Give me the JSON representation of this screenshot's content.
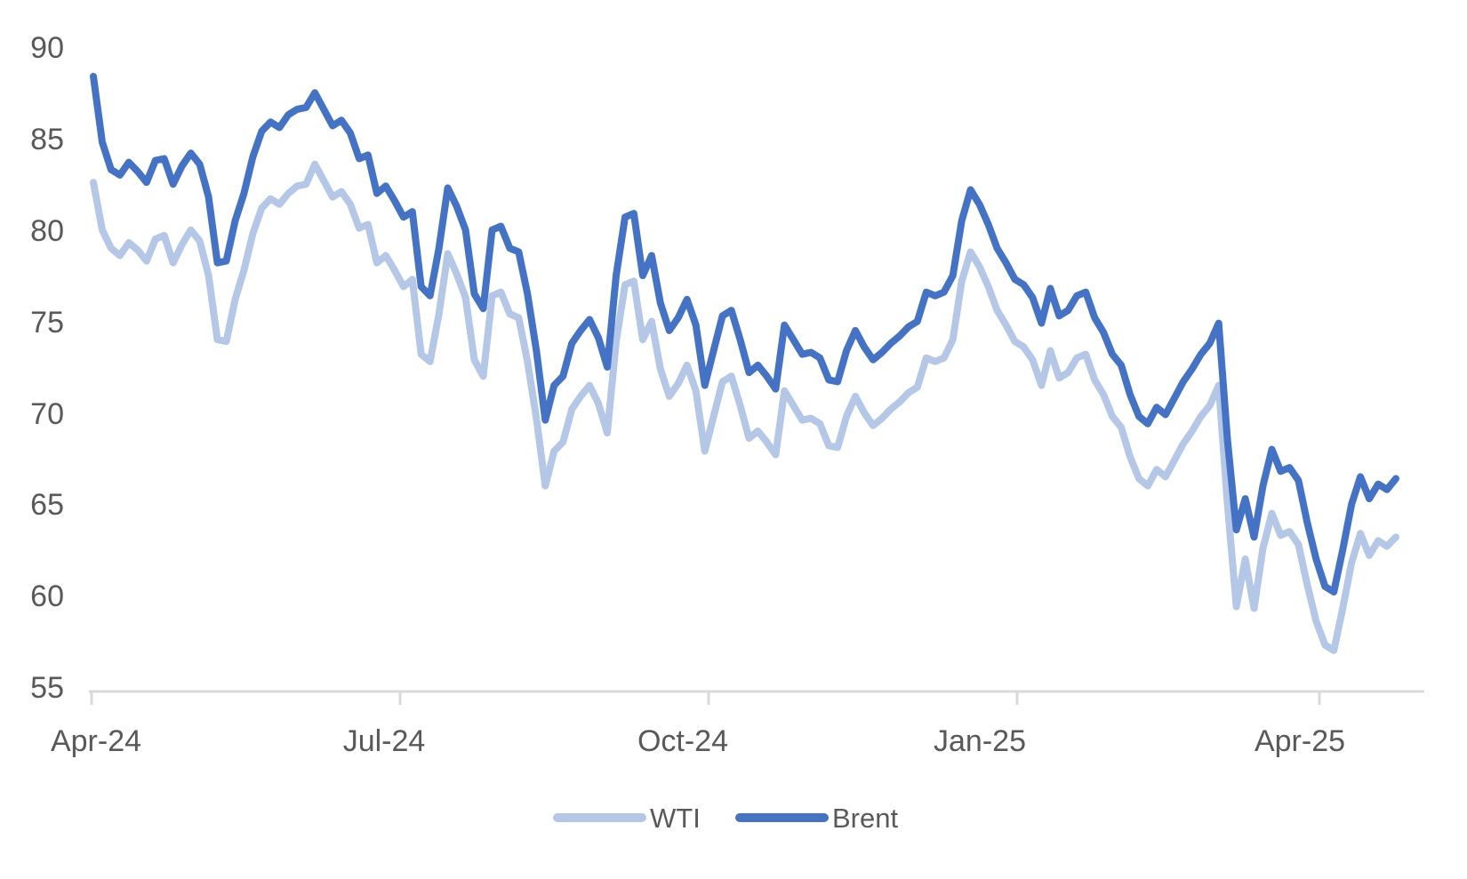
{
  "chart_data": {
    "type": "line",
    "title": "",
    "xlabel": "",
    "ylabel": "",
    "x_unit": "daily prices, Apr-2024 through Apr-2025",
    "ylim": [
      55,
      90
    ],
    "grid": false,
    "legend_position": "bottom-center",
    "y_tick_labels": [
      "90",
      "85",
      "80",
      "75",
      "70",
      "65",
      "60",
      "55"
    ],
    "y_tick_values": [
      90,
      85,
      80,
      75,
      70,
      65,
      60,
      55
    ],
    "x_tick_labels": [
      "Apr-24",
      "Jul-24",
      "Oct-24",
      "Jan-25",
      "Apr-25"
    ],
    "series": [
      {
        "name": "WTI",
        "color": "#b4c7e7",
        "values": [
          82.6,
          80.0,
          79.0,
          78.6,
          79.3,
          78.9,
          78.3,
          79.5,
          79.7,
          78.2,
          79.2,
          80.0,
          79.4,
          77.5,
          74.0,
          73.9,
          76.2,
          77.8,
          79.8,
          81.2,
          81.7,
          81.4,
          82.0,
          82.4,
          82.5,
          83.6,
          82.7,
          81.8,
          82.1,
          81.4,
          80.1,
          80.3,
          78.2,
          78.6,
          77.8,
          76.9,
          77.3,
          73.2,
          72.8,
          75.4,
          78.7,
          77.6,
          76.3,
          72.9,
          72.0,
          76.4,
          76.6,
          75.4,
          75.2,
          72.8,
          69.7,
          66.0,
          67.9,
          68.4,
          70.2,
          70.9,
          71.5,
          70.5,
          68.9,
          73.9,
          77.0,
          77.2,
          74.0,
          75.0,
          72.4,
          70.9,
          71.6,
          72.6,
          71.2,
          67.9,
          69.8,
          71.7,
          72.0,
          70.4,
          68.6,
          69.0,
          68.4,
          67.7,
          71.2,
          70.4,
          69.6,
          69.7,
          69.4,
          68.2,
          68.1,
          69.8,
          70.9,
          70.0,
          69.3,
          69.7,
          70.2,
          70.6,
          71.1,
          71.4,
          73.0,
          72.8,
          73.0,
          74.0,
          77.2,
          78.8,
          78.0,
          76.9,
          75.6,
          74.8,
          73.9,
          73.6,
          72.9,
          71.5,
          73.4,
          71.9,
          72.2,
          73.0,
          73.2,
          71.8,
          71.0,
          69.8,
          69.2,
          67.6,
          66.4,
          66.0,
          66.9,
          66.5,
          67.4,
          68.3,
          69.0,
          69.8,
          70.4,
          71.5,
          65.0,
          59.4,
          62.0,
          59.3,
          62.6,
          64.5,
          63.3,
          63.5,
          62.8,
          60.6,
          58.6,
          57.3,
          57.0,
          59.3,
          61.8,
          63.4,
          62.2,
          63.0,
          62.7,
          63.2
        ]
      },
      {
        "name": "Brent",
        "color": "#4472c4",
        "values": [
          88.4,
          84.8,
          83.3,
          83.0,
          83.7,
          83.2,
          82.6,
          83.8,
          83.9,
          82.5,
          83.5,
          84.2,
          83.6,
          81.8,
          78.2,
          78.3,
          80.5,
          82.0,
          84.0,
          85.4,
          85.9,
          85.6,
          86.3,
          86.6,
          86.7,
          87.5,
          86.6,
          85.7,
          86.0,
          85.3,
          83.9,
          84.1,
          82.0,
          82.4,
          81.6,
          80.7,
          81.0,
          76.9,
          76.4,
          79.0,
          82.3,
          81.3,
          80.0,
          76.5,
          75.7,
          80.0,
          80.2,
          79.0,
          78.8,
          76.5,
          73.4,
          69.6,
          71.5,
          72.0,
          73.8,
          74.5,
          75.1,
          74.1,
          72.5,
          77.5,
          80.7,
          80.9,
          77.5,
          78.6,
          76.0,
          74.5,
          75.2,
          76.2,
          74.8,
          71.5,
          73.4,
          75.3,
          75.6,
          74.0,
          72.2,
          72.6,
          72.0,
          71.3,
          74.8,
          74.0,
          73.2,
          73.3,
          73.0,
          71.8,
          71.7,
          73.4,
          74.5,
          73.6,
          72.9,
          73.3,
          73.8,
          74.2,
          74.7,
          75.0,
          76.6,
          76.4,
          76.6,
          77.5,
          80.5,
          82.2,
          81.4,
          80.3,
          79.0,
          78.2,
          77.3,
          77.0,
          76.3,
          74.9,
          76.8,
          75.3,
          75.6,
          76.4,
          76.6,
          75.2,
          74.4,
          73.2,
          72.6,
          71.0,
          69.8,
          69.4,
          70.3,
          69.9,
          70.8,
          71.7,
          72.4,
          73.2,
          73.8,
          74.9,
          68.5,
          63.6,
          65.3,
          63.2,
          66.0,
          68.0,
          66.8,
          67.0,
          66.3,
          64.0,
          62.0,
          60.5,
          60.2,
          62.5,
          65.0,
          66.5,
          65.3,
          66.1,
          65.8,
          66.4
        ]
      }
    ]
  },
  "legend": {
    "items": [
      {
        "label": "WTI",
        "color": "#b4c7e7"
      },
      {
        "label": "Brent",
        "color": "#4472c4"
      }
    ]
  },
  "axis_style": {
    "line_color": "#d9d9d9",
    "text_color": "#595959"
  }
}
